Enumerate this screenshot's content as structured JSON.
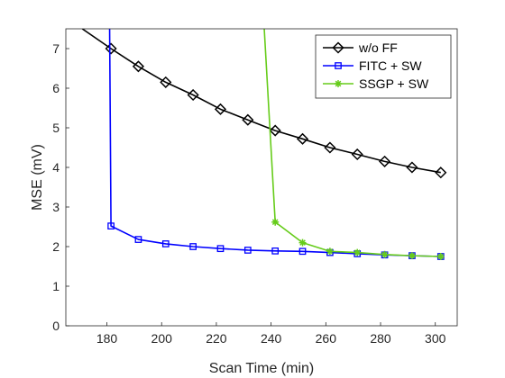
{
  "chart_data": {
    "type": "line",
    "title": "",
    "xlabel": "Scan Time (min)",
    "ylabel": "MSE (mV)",
    "xlim": [
      165,
      308
    ],
    "ylim": [
      0,
      7.5
    ],
    "xticks": [
      180,
      200,
      220,
      240,
      260,
      280,
      300
    ],
    "yticks": [
      0,
      1,
      2,
      3,
      4,
      5,
      6,
      7
    ],
    "grid": false,
    "legend_position": "top-right",
    "series": [
      {
        "name": "w/o FF",
        "color": "#000000",
        "marker": "diamond",
        "x": [
          171,
          181.5,
          191.5,
          201.5,
          211.5,
          221.5,
          231.5,
          241.5,
          251.5,
          261.5,
          271.5,
          281.5,
          291.5,
          302
        ],
        "y": [
          7.5,
          7.0,
          6.55,
          6.15,
          5.83,
          5.47,
          5.2,
          4.93,
          4.72,
          4.5,
          4.33,
          4.15,
          4.0,
          3.87
        ],
        "marker_from": 1
      },
      {
        "name": "FITC + SW",
        "color": "#0000ff",
        "marker": "square",
        "x": [
          181,
          181.5,
          191.5,
          201.5,
          211.5,
          221.5,
          231.5,
          241.5,
          251.5,
          261.5,
          271.5,
          281.5,
          291.5,
          302
        ],
        "y": [
          7.5,
          2.52,
          2.18,
          2.07,
          2.0,
          1.95,
          1.91,
          1.89,
          1.88,
          1.85,
          1.82,
          1.79,
          1.77,
          1.75
        ],
        "marker_from": 1
      },
      {
        "name": "SSGP + SW",
        "color": "#66cc1a",
        "marker": "asterisk",
        "x": [
          237.5,
          241.5,
          251.5,
          261.5,
          271.5,
          281.5,
          291.5,
          302
        ],
        "y": [
          7.5,
          2.62,
          2.1,
          1.88,
          1.85,
          1.8,
          1.77,
          1.75
        ],
        "marker_from": 1
      }
    ]
  }
}
